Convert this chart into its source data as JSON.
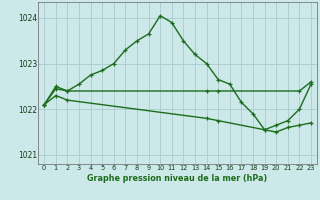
{
  "title": "Graphe pression niveau de la mer (hPa)",
  "bg_color": "#cce8e8",
  "grid_color": "#aacccc",
  "line_color": "#1a6e1a",
  "xlim": [
    -0.5,
    23.5
  ],
  "ylim": [
    1020.8,
    1024.35
  ],
  "yticks": [
    1021,
    1022,
    1023,
    1024
  ],
  "xticks": [
    0,
    1,
    2,
    3,
    4,
    5,
    6,
    7,
    8,
    9,
    10,
    11,
    12,
    13,
    14,
    15,
    16,
    17,
    18,
    19,
    20,
    21,
    22,
    23
  ],
  "series1_x": [
    0,
    1,
    2,
    3,
    4,
    5,
    6,
    7,
    8,
    9,
    10,
    11,
    12,
    13,
    14,
    15,
    16,
    17,
    18,
    19,
    20,
    21,
    22,
    23
  ],
  "series1_y": [
    1022.1,
    1022.5,
    1022.4,
    1022.55,
    1022.75,
    1022.85,
    1023.0,
    1023.3,
    1023.5,
    1023.65,
    1024.05,
    1023.9,
    1023.5,
    1023.2,
    1023.0,
    1022.65,
    1022.55,
    1022.15,
    1021.9,
    1021.55,
    1021.65,
    1021.75,
    1022.0,
    1022.55
  ],
  "series2_x": [
    0,
    1,
    2,
    14,
    15,
    22,
    23
  ],
  "series2_y": [
    1022.1,
    1022.45,
    1022.4,
    1022.4,
    1022.4,
    1022.4,
    1022.6
  ],
  "series3_x": [
    0,
    1,
    2,
    14,
    15,
    19,
    20,
    21,
    22,
    23
  ],
  "series3_y": [
    1022.1,
    1022.3,
    1022.2,
    1021.8,
    1021.75,
    1021.55,
    1021.5,
    1021.6,
    1021.65,
    1021.7
  ]
}
